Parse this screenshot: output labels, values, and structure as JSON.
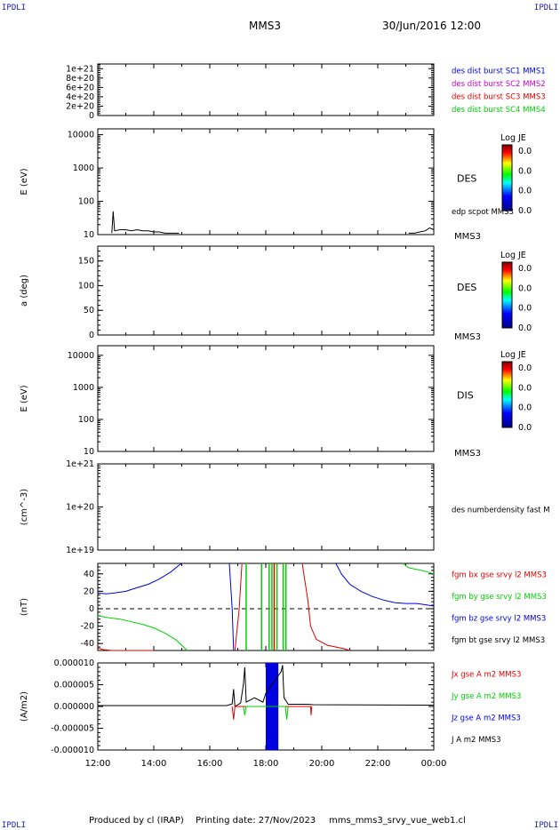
{
  "corner_tl": "IPDLI",
  "corner_tr": "IPDLI",
  "corner_bl": "IPDLI",
  "corner_br": "IPDLI",
  "header": {
    "spacecraft": "MMS3",
    "date": "30/Jun/2016 12:00"
  },
  "footer": {
    "produced": "Produced by cl (IRAP)",
    "printing": "Printing date: 27/Nov/2023",
    "file": "mms_mms3_srvy_vue_web1.cl"
  },
  "colors": {
    "red": "#e00000",
    "green": "#00d000",
    "blue": "#0000e0",
    "magenta": "#d000d0",
    "black": "#000000"
  },
  "chart_data": [
    {
      "type": "line",
      "ylabel": "",
      "ylim": [
        0,
        1.1e+21
      ],
      "yticks": [
        {
          "v": 0,
          "l": "0"
        },
        {
          "v": 2e+20,
          "l": "2e+20"
        },
        {
          "v": 4e+20,
          "l": "4e+20"
        },
        {
          "v": 6e+20,
          "l": "6e+20"
        },
        {
          "v": 8e+20,
          "l": "8e+20"
        },
        {
          "v": 1e+21,
          "l": "1e+21"
        }
      ],
      "dashed_zero": true,
      "labels": [
        {
          "text": "des dist burst SC1 MMS1",
          "color": "#0000e0"
        },
        {
          "text": "des dist burst SC2 MMS2",
          "color": "#d000d0"
        },
        {
          "text": "des dist burst SC3 MMS3",
          "color": "#e00000"
        },
        {
          "text": "des dist burst SC4 MMS4",
          "color": "#00d000"
        }
      ],
      "series": []
    },
    {
      "type": "line",
      "ylabel": "E (eV)",
      "scale": "log",
      "ylim": [
        10,
        15000
      ],
      "yticks": [
        {
          "v": 10,
          "l": "10"
        },
        {
          "v": 100,
          "l": "100"
        },
        {
          "v": 1000,
          "l": "1000"
        },
        {
          "v": 10000,
          "l": "10000"
        }
      ],
      "species": "DES",
      "spacecraft": "MMS3",
      "line_label": "edp scpot MMS3",
      "colorbar": {
        "title": "Log JE",
        "ticks": [
          "0.0",
          "0.0",
          "0.0",
          "0.0"
        ]
      },
      "series": [
        {
          "color": "#000000",
          "points": [
            [
              12.5,
              11
            ],
            [
              12.55,
              50
            ],
            [
              12.6,
              13
            ],
            [
              12.8,
              14
            ],
            [
              13.0,
              14
            ],
            [
              13.2,
              13
            ],
            [
              13.4,
              14
            ],
            [
              13.6,
              13
            ],
            [
              13.8,
              13
            ],
            [
              14.0,
              12
            ],
            [
              14.2,
              12
            ],
            [
              14.4,
              11
            ],
            [
              14.6,
              11
            ],
            [
              14.9,
              11
            ]
          ]
        },
        {
          "color": "#000000",
          "points": [
            [
              23.1,
              11
            ],
            [
              23.3,
              11
            ],
            [
              23.5,
              12
            ],
            [
              23.7,
              13
            ],
            [
              23.85,
              16
            ],
            [
              24.0,
              14
            ]
          ]
        }
      ]
    },
    {
      "type": "line",
      "ylabel": "a (deg)",
      "ylim": [
        0,
        180
      ],
      "yticks": [
        {
          "v": 0,
          "l": "0"
        },
        {
          "v": 50,
          "l": "50"
        },
        {
          "v": 100,
          "l": "100"
        },
        {
          "v": 150,
          "l": "150"
        }
      ],
      "species": "DES",
      "spacecraft": "MMS3",
      "colorbar": {
        "title": "Log JE",
        "ticks": [
          "0.0",
          "0.0",
          "0.0",
          "0.0"
        ]
      },
      "series": []
    },
    {
      "type": "line",
      "ylabel": "E (eV)",
      "scale": "log",
      "ylim": [
        10,
        20000
      ],
      "yticks": [
        {
          "v": 10,
          "l": "10"
        },
        {
          "v": 100,
          "l": "100"
        },
        {
          "v": 1000,
          "l": "1000"
        },
        {
          "v": 10000,
          "l": "10000"
        }
      ],
      "species": "DIS",
      "spacecraft": "MMS3",
      "colorbar": {
        "title": "Log JE",
        "ticks": [
          "0.0",
          "0.0",
          "0.0",
          "0.0"
        ]
      },
      "series": []
    },
    {
      "type": "line",
      "ylabel": "(cm^-3)",
      "scale": "log",
      "ylim": [
        1e+19,
        1e+21
      ],
      "yticks": [
        {
          "v": 1e+19,
          "l": "1e+19"
        },
        {
          "v": 1e+20,
          "l": "1e+20"
        },
        {
          "v": 1e+21,
          "l": "1e+21"
        }
      ],
      "line_label": "des numberdensity fast M",
      "series": []
    },
    {
      "type": "line",
      "ylabel": "(nT)",
      "ylim": [
        -48,
        52
      ],
      "yticks": [
        {
          "v": -40,
          "l": "-40"
        },
        {
          "v": -20,
          "l": "-20"
        },
        {
          "v": 0,
          "l": "0"
        },
        {
          "v": 20,
          "l": "20"
        },
        {
          "v": 40,
          "l": "40"
        }
      ],
      "dashed_zero": true,
      "labels": [
        {
          "text": "fgm bx gse srvy l2 MMS3",
          "color": "#e00000"
        },
        {
          "text": "fgm by gse srvy l2 MMS3",
          "color": "#00d000"
        },
        {
          "text": "fgm bz gse srvy l2 MMS3",
          "color": "#0000e0"
        },
        {
          "text": "fgm bt gse srvy l2 MMS3",
          "color": "#000000"
        }
      ],
      "series": [
        {
          "name": "bx",
          "color": "#e00000",
          "points": [
            [
              12.0,
              -45
            ],
            [
              12.2,
              -47
            ],
            [
              12.5,
              -48
            ],
            [
              14.0,
              -48
            ]
          ]
        },
        {
          "name": "bx",
          "color": "#e00000",
          "points": [
            [
              16.9,
              -48
            ],
            [
              17.05,
              0
            ],
            [
              17.15,
              52
            ]
          ]
        },
        {
          "name": "bx",
          "color": "#e00000",
          "points": [
            [
              19.3,
              52
            ],
            [
              19.5,
              10
            ],
            [
              19.6,
              -20
            ],
            [
              19.8,
              -35
            ],
            [
              20.2,
              -42
            ],
            [
              20.8,
              -46
            ],
            [
              21.0,
              -48
            ]
          ]
        },
        {
          "name": "by",
          "color": "#00d000",
          "points": [
            [
              12.0,
              -8
            ],
            [
              12.3,
              -10
            ],
            [
              12.8,
              -12
            ],
            [
              13.2,
              -15
            ],
            [
              13.6,
              -18
            ],
            [
              14.0,
              -22
            ],
            [
              14.4,
              -28
            ],
            [
              14.8,
              -36
            ],
            [
              15.1,
              -45
            ],
            [
              15.2,
              -48
            ]
          ]
        },
        {
          "name": "by",
          "color": "#00d000",
          "points": [
            [
              22.9,
              52
            ],
            [
              23.1,
              47
            ],
            [
              23.4,
              45
            ],
            [
              23.7,
              43
            ],
            [
              24.0,
              40
            ]
          ]
        },
        {
          "name": "bz",
          "color": "#0000e0",
          "points": [
            [
              12.0,
              18
            ],
            [
              12.3,
              17
            ],
            [
              12.6,
              18
            ],
            [
              13.0,
              20
            ],
            [
              13.4,
              24
            ],
            [
              13.8,
              28
            ],
            [
              14.2,
              34
            ],
            [
              14.6,
              42
            ],
            [
              14.9,
              50
            ],
            [
              15.0,
              52
            ]
          ]
        },
        {
          "name": "bz",
          "color": "#0000e0",
          "points": [
            [
              16.7,
              52
            ],
            [
              16.8,
              0
            ],
            [
              16.85,
              -48
            ]
          ]
        },
        {
          "name": "bz",
          "color": "#0000e0",
          "points": [
            [
              20.5,
              52
            ],
            [
              20.7,
              40
            ],
            [
              21.0,
              28
            ],
            [
              21.4,
              20
            ],
            [
              21.8,
              14
            ],
            [
              22.2,
              10
            ],
            [
              22.6,
              7
            ],
            [
              23.0,
              6
            ],
            [
              23.4,
              6
            ],
            [
              23.8,
              4
            ],
            [
              24.0,
              3
            ]
          ]
        }
      ],
      "vlines": [
        {
          "x": 17.3,
          "color": "#00d000"
        },
        {
          "x": 17.85,
          "color": "#00d000"
        },
        {
          "x": 18.12,
          "color": "#00d000"
        },
        {
          "x": 18.22,
          "color": "#00d000"
        },
        {
          "x": 18.3,
          "color": "#e00000"
        },
        {
          "x": 18.4,
          "color": "#00d000"
        },
        {
          "x": 18.62,
          "color": "#00d000"
        },
        {
          "x": 18.72,
          "color": "#00d000"
        }
      ]
    },
    {
      "type": "line",
      "ylabel": "(A/m2)",
      "ylim": [
        -1e-05,
        1e-05
      ],
      "yticks": [
        {
          "v": -1e-05,
          "l": "-0.000010"
        },
        {
          "v": -5e-06,
          "l": "-0.000005"
        },
        {
          "v": 0,
          "l": "0.000000"
        },
        {
          "v": 5e-06,
          "l": "0.000005"
        },
        {
          "v": 1e-05,
          "l": "0.000010"
        }
      ],
      "labels": [
        {
          "text": "Jx gse A m2 MMS3",
          "color": "#e00000"
        },
        {
          "text": "Jy gse A m2 MMS3",
          "color": "#00d000"
        },
        {
          "text": "Jz gse A m2 MMS3",
          "color": "#0000e0"
        },
        {
          "text": "J A m2 MMS3",
          "color": "#000000"
        }
      ],
      "series": [
        {
          "name": "J",
          "color": "#000000",
          "points": [
            [
              12.0,
              2e-07
            ],
            [
              16.6,
              2e-07
            ],
            [
              16.8,
              6e-07
            ],
            [
              16.85,
              4e-06
            ],
            [
              16.9,
              0
            ],
            [
              17.1,
              8e-07
            ],
            [
              17.2,
              5e-06
            ],
            [
              17.25,
              9e-06
            ],
            [
              17.3,
              1e-06
            ],
            [
              17.6,
              2e-06
            ],
            [
              17.9,
              1e-06
            ],
            [
              18.0,
              3e-06
            ],
            [
              18.55,
              8e-06
            ],
            [
              18.6,
              9.5e-06
            ],
            [
              18.65,
              2e-06
            ],
            [
              18.8,
              5e-07
            ],
            [
              19.5,
              5e-07
            ],
            [
              19.7,
              4e-07
            ],
            [
              24.0,
              3e-07
            ]
          ]
        },
        {
          "name": "Jx",
          "color": "#e00000",
          "points": [
            [
              16.8,
              0
            ],
            [
              16.85,
              -3e-06
            ],
            [
              16.9,
              0
            ],
            [
              19.6,
              0
            ],
            [
              19.62,
              -2e-06
            ],
            [
              19.64,
              0
            ]
          ]
        },
        {
          "name": "Jy",
          "color": "#00d000",
          "points": [
            [
              17.2,
              0
            ],
            [
              17.25,
              -2e-06
            ],
            [
              17.3,
              0
            ],
            [
              18.7,
              0
            ],
            [
              18.75,
              -3e-06
            ],
            [
              18.8,
              0
            ]
          ]
        }
      ],
      "bands": [
        {
          "x0": 18.0,
          "x1": 18.45,
          "y0": -1e-05,
          "y1": 1e-05,
          "color": "#0000e0"
        }
      ]
    }
  ],
  "x_axis": {
    "ticks": [
      {
        "v": 12,
        "l": "12:00"
      },
      {
        "v": 14,
        "l": "14:00"
      },
      {
        "v": 16,
        "l": "16:00"
      },
      {
        "v": 18,
        "l": "18:00"
      },
      {
        "v": 20,
        "l": "20:00"
      },
      {
        "v": 22,
        "l": "22:00"
      },
      {
        "v": 24,
        "l": "00:00"
      }
    ],
    "xlim": [
      12,
      24
    ]
  }
}
